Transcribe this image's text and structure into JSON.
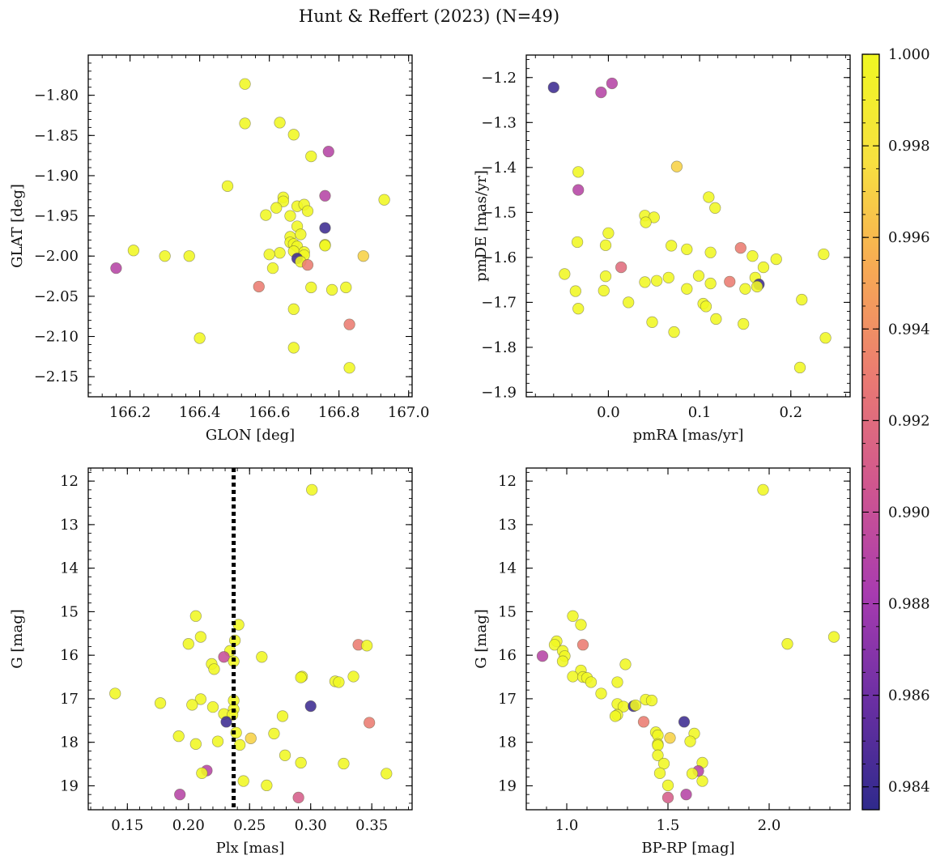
{
  "figure": {
    "title": "Hunt & Reffert (2023) (N=49)"
  },
  "colormap": {
    "name": "plasma",
    "stops": [
      "#2f2a8c",
      "#6a2fa3",
      "#a83bb0",
      "#d0568f",
      "#ea7a72",
      "#f7a954",
      "#f7e040",
      "#f0f722"
    ],
    "range": [
      0.9835,
      1.0
    ],
    "ticks": [
      0.984,
      0.986,
      0.988,
      0.99,
      0.992,
      0.994,
      0.996,
      0.998,
      1.0
    ],
    "tick_labels": [
      "0.984",
      "0.986",
      "0.988",
      "0.990",
      "0.992",
      "0.994",
      "0.996",
      "0.998",
      "1.000"
    ]
  },
  "chart_data": [
    {
      "type": "scatter",
      "xlabel": "GLON [deg]",
      "ylabel": "GLAT [deg]",
      "xlim": [
        166.08,
        167.01
      ],
      "ylim": [
        -2.175,
        -1.75
      ],
      "invert_y": false,
      "xticks": [
        166.2,
        166.4,
        166.6,
        166.8,
        167.0
      ],
      "xtick_labels": [
        "166.2",
        "166.4",
        "166.6",
        "166.8",
        "167.0"
      ],
      "yticks": [
        -1.8,
        -1.85,
        -1.9,
        -1.95,
        -2.0,
        -2.05,
        -2.1,
        -2.15
      ],
      "ytick_labels": [
        "−1.80",
        "−1.85",
        "−1.90",
        "−1.95",
        "−2.00",
        "−2.05",
        "−2.10",
        "−2.15"
      ],
      "points": [
        {
          "x": 166.53,
          "y": -1.786,
          "c": 1.0
        },
        {
          "x": 166.53,
          "y": -1.835,
          "c": 1.0
        },
        {
          "x": 166.63,
          "y": -1.834,
          "c": 1.0
        },
        {
          "x": 166.67,
          "y": -1.849,
          "c": 1.0
        },
        {
          "x": 166.72,
          "y": -1.876,
          "c": 1.0
        },
        {
          "x": 166.77,
          "y": -1.87,
          "c": 0.989
        },
        {
          "x": 166.48,
          "y": -1.913,
          "c": 1.0
        },
        {
          "x": 166.76,
          "y": -1.925,
          "c": 0.989
        },
        {
          "x": 166.93,
          "y": -1.93,
          "c": 1.0
        },
        {
          "x": 166.64,
          "y": -1.927,
          "c": 1.0
        },
        {
          "x": 166.64,
          "y": -1.932,
          "c": 1.0
        },
        {
          "x": 166.62,
          "y": -1.94,
          "c": 1.0
        },
        {
          "x": 166.68,
          "y": -1.938,
          "c": 1.0
        },
        {
          "x": 166.7,
          "y": -1.936,
          "c": 1.0
        },
        {
          "x": 166.71,
          "y": -1.944,
          "c": 1.0
        },
        {
          "x": 166.59,
          "y": -1.949,
          "c": 1.0
        },
        {
          "x": 166.66,
          "y": -1.95,
          "c": 1.0
        },
        {
          "x": 166.68,
          "y": -1.963,
          "c": 1.0
        },
        {
          "x": 166.76,
          "y": -1.965,
          "c": 0.984
        },
        {
          "x": 166.66,
          "y": -1.976,
          "c": 1.0
        },
        {
          "x": 166.69,
          "y": -1.973,
          "c": 1.0
        },
        {
          "x": 166.66,
          "y": -1.983,
          "c": 1.0
        },
        {
          "x": 166.67,
          "y": -1.985,
          "c": 1.0
        },
        {
          "x": 166.68,
          "y": -1.988,
          "c": 1.0
        },
        {
          "x": 166.76,
          "y": -1.986,
          "c": 1.0
        },
        {
          "x": 166.76,
          "y": -1.987,
          "c": 1.0
        },
        {
          "x": 166.21,
          "y": -1.993,
          "c": 1.0
        },
        {
          "x": 166.63,
          "y": -1.996,
          "c": 1.0
        },
        {
          "x": 166.67,
          "y": -1.994,
          "c": 1.0
        },
        {
          "x": 166.7,
          "y": -1.995,
          "c": 1.0
        },
        {
          "x": 166.7,
          "y": -1.999,
          "c": 1.0
        },
        {
          "x": 166.3,
          "y": -2.0,
          "c": 1.0
        },
        {
          "x": 166.37,
          "y": -2.0,
          "c": 1.0
        },
        {
          "x": 166.87,
          "y": -2.0,
          "c": 0.997
        },
        {
          "x": 166.68,
          "y": -2.003,
          "c": 0.984
        },
        {
          "x": 166.69,
          "y": -2.007,
          "c": 1.0
        },
        {
          "x": 166.71,
          "y": -2.011,
          "c": 0.993
        },
        {
          "x": 166.16,
          "y": -2.015,
          "c": 0.989
        },
        {
          "x": 166.61,
          "y": -2.015,
          "c": 1.0
        },
        {
          "x": 166.57,
          "y": -2.038,
          "c": 0.993
        },
        {
          "x": 166.72,
          "y": -2.039,
          "c": 1.0
        },
        {
          "x": 166.78,
          "y": -2.042,
          "c": 1.0
        },
        {
          "x": 166.82,
          "y": -2.039,
          "c": 1.0
        },
        {
          "x": 166.67,
          "y": -2.066,
          "c": 1.0
        },
        {
          "x": 166.83,
          "y": -2.085,
          "c": 0.993
        },
        {
          "x": 166.4,
          "y": -2.102,
          "c": 1.0
        },
        {
          "x": 166.67,
          "y": -2.114,
          "c": 1.0
        },
        {
          "x": 166.83,
          "y": -2.139,
          "c": 1.0
        },
        {
          "x": 166.6,
          "y": -1.998,
          "c": 1.0
        }
      ]
    },
    {
      "type": "scatter",
      "xlabel": "pmRA [mas/yr]",
      "ylabel": "pmDE [mas/yr]",
      "xlim": [
        -0.09,
        0.265
      ],
      "ylim": [
        -1.91,
        -1.15
      ],
      "invert_y": false,
      "xticks": [
        0.0,
        0.1,
        0.2
      ],
      "xtick_labels": [
        "0.0",
        "0.1",
        "0.2"
      ],
      "yticks": [
        -1.2,
        -1.3,
        -1.4,
        -1.5,
        -1.6,
        -1.7,
        -1.8,
        -1.9
      ],
      "ytick_labels": [
        "−1.2",
        "−1.3",
        "−1.4",
        "−1.5",
        "−1.6",
        "−1.7",
        "−1.8",
        "−1.9"
      ],
      "points": [
        {
          "x": -0.06,
          "y": -1.222,
          "c": 0.984
        },
        {
          "x": -0.008,
          "y": -1.233,
          "c": 0.989
        },
        {
          "x": 0.004,
          "y": -1.213,
          "c": 0.989
        },
        {
          "x": 0.075,
          "y": -1.398,
          "c": 0.997
        },
        {
          "x": -0.033,
          "y": -1.41,
          "c": 1.0
        },
        {
          "x": -0.033,
          "y": -1.45,
          "c": 0.989
        },
        {
          "x": 0.11,
          "y": -1.466,
          "c": 1.0
        },
        {
          "x": 0.117,
          "y": -1.49,
          "c": 1.0
        },
        {
          "x": 0.04,
          "y": -1.507,
          "c": 1.0
        },
        {
          "x": 0.05,
          "y": -1.511,
          "c": 1.0
        },
        {
          "x": 0.041,
          "y": -1.522,
          "c": 1.0
        },
        {
          "x": 0.0,
          "y": -1.546,
          "c": 1.0
        },
        {
          "x": -0.034,
          "y": -1.566,
          "c": 1.0
        },
        {
          "x": -0.003,
          "y": -1.573,
          "c": 1.0
        },
        {
          "x": 0.069,
          "y": -1.574,
          "c": 1.0
        },
        {
          "x": 0.086,
          "y": -1.582,
          "c": 1.0
        },
        {
          "x": 0.145,
          "y": -1.579,
          "c": 0.993
        },
        {
          "x": 0.112,
          "y": -1.589,
          "c": 1.0
        },
        {
          "x": 0.236,
          "y": -1.593,
          "c": 1.0
        },
        {
          "x": 0.158,
          "y": -1.597,
          "c": 1.0
        },
        {
          "x": 0.184,
          "y": -1.604,
          "c": 1.0
        },
        {
          "x": 0.17,
          "y": -1.622,
          "c": 1.0
        },
        {
          "x": 0.014,
          "y": -1.622,
          "c": 0.992
        },
        {
          "x": -0.048,
          "y": -1.637,
          "c": 1.0
        },
        {
          "x": -0.003,
          "y": -1.642,
          "c": 1.0
        },
        {
          "x": 0.066,
          "y": -1.645,
          "c": 1.0
        },
        {
          "x": 0.099,
          "y": -1.641,
          "c": 1.0
        },
        {
          "x": 0.161,
          "y": -1.645,
          "c": 1.0
        },
        {
          "x": 0.133,
          "y": -1.654,
          "c": 0.993
        },
        {
          "x": 0.04,
          "y": -1.655,
          "c": 1.0
        },
        {
          "x": 0.053,
          "y": -1.652,
          "c": 1.0
        },
        {
          "x": 0.112,
          "y": -1.658,
          "c": 1.0
        },
        {
          "x": 0.165,
          "y": -1.66,
          "c": 0.984
        },
        {
          "x": 0.163,
          "y": -1.665,
          "c": 1.0
        },
        {
          "x": 0.15,
          "y": -1.67,
          "c": 1.0
        },
        {
          "x": 0.086,
          "y": -1.67,
          "c": 1.0
        },
        {
          "x": -0.036,
          "y": -1.675,
          "c": 1.0
        },
        {
          "x": -0.005,
          "y": -1.674,
          "c": 1.0
        },
        {
          "x": 0.022,
          "y": -1.7,
          "c": 1.0
        },
        {
          "x": 0.212,
          "y": -1.694,
          "c": 1.0
        },
        {
          "x": 0.104,
          "y": -1.703,
          "c": 1.0
        },
        {
          "x": 0.107,
          "y": -1.709,
          "c": 1.0
        },
        {
          "x": -0.033,
          "y": -1.714,
          "c": 1.0
        },
        {
          "x": 0.118,
          "y": -1.737,
          "c": 1.0
        },
        {
          "x": 0.048,
          "y": -1.744,
          "c": 1.0
        },
        {
          "x": 0.148,
          "y": -1.748,
          "c": 1.0
        },
        {
          "x": 0.072,
          "y": -1.766,
          "c": 1.0
        },
        {
          "x": 0.238,
          "y": -1.779,
          "c": 1.0
        },
        {
          "x": 0.21,
          "y": -1.845,
          "c": 1.0
        }
      ]
    },
    {
      "type": "scatter",
      "xlabel": "Plx [mas]",
      "ylabel": "G [mag]",
      "xlim": [
        0.118,
        0.383
      ],
      "ylim": [
        11.7,
        19.55
      ],
      "invert_y": true,
      "vline": {
        "x": 0.237,
        "style": "dotted"
      },
      "xticks": [
        0.15,
        0.2,
        0.25,
        0.3,
        0.35
      ],
      "xtick_labels": [
        "0.15",
        "0.20",
        "0.25",
        "0.30",
        "0.35"
      ],
      "yticks": [
        12,
        13,
        14,
        15,
        16,
        17,
        18,
        19
      ],
      "ytick_labels": [
        "12",
        "13",
        "14",
        "15",
        "16",
        "17",
        "18",
        "19"
      ],
      "points": [
        {
          "x": 0.301,
          "y": 12.2,
          "c": 1.0
        },
        {
          "x": 0.206,
          "y": 15.1,
          "c": 1.0
        },
        {
          "x": 0.241,
          "y": 15.3,
          "c": 1.0
        },
        {
          "x": 0.21,
          "y": 15.58,
          "c": 1.0
        },
        {
          "x": 0.238,
          "y": 15.66,
          "c": 1.0
        },
        {
          "x": 0.2,
          "y": 15.74,
          "c": 1.0
        },
        {
          "x": 0.339,
          "y": 15.76,
          "c": 0.993
        },
        {
          "x": 0.346,
          "y": 15.78,
          "c": 1.0
        },
        {
          "x": 0.234,
          "y": 15.9,
          "c": 1.0
        },
        {
          "x": 0.229,
          "y": 16.04,
          "c": 0.99
        },
        {
          "x": 0.26,
          "y": 16.04,
          "c": 1.0
        },
        {
          "x": 0.237,
          "y": 16.14,
          "c": 1.0
        },
        {
          "x": 0.219,
          "y": 16.2,
          "c": 1.0
        },
        {
          "x": 0.221,
          "y": 16.32,
          "c": 1.0
        },
        {
          "x": 0.293,
          "y": 16.49,
          "c": 1.0
        },
        {
          "x": 0.292,
          "y": 16.51,
          "c": 1.0
        },
        {
          "x": 0.335,
          "y": 16.49,
          "c": 1.0
        },
        {
          "x": 0.32,
          "y": 16.6,
          "c": 1.0
        },
        {
          "x": 0.323,
          "y": 16.62,
          "c": 1.0
        },
        {
          "x": 0.14,
          "y": 16.88,
          "c": 1.0
        },
        {
          "x": 0.21,
          "y": 17.01,
          "c": 1.0
        },
        {
          "x": 0.237,
          "y": 17.04,
          "c": 1.0
        },
        {
          "x": 0.177,
          "y": 17.1,
          "c": 1.0
        },
        {
          "x": 0.203,
          "y": 17.14,
          "c": 1.0
        },
        {
          "x": 0.3,
          "y": 17.17,
          "c": 0.984
        },
        {
          "x": 0.22,
          "y": 17.19,
          "c": 1.0
        },
        {
          "x": 0.237,
          "y": 17.24,
          "c": 1.0
        },
        {
          "x": 0.229,
          "y": 17.35,
          "c": 1.0
        },
        {
          "x": 0.236,
          "y": 17.37,
          "c": 1.0
        },
        {
          "x": 0.277,
          "y": 17.4,
          "c": 1.0
        },
        {
          "x": 0.231,
          "y": 17.53,
          "c": 0.984
        },
        {
          "x": 0.348,
          "y": 17.55,
          "c": 0.993
        },
        {
          "x": 0.239,
          "y": 17.78,
          "c": 1.0
        },
        {
          "x": 0.27,
          "y": 17.8,
          "c": 1.0
        },
        {
          "x": 0.192,
          "y": 17.86,
          "c": 1.0
        },
        {
          "x": 0.251,
          "y": 17.91,
          "c": 0.997
        },
        {
          "x": 0.224,
          "y": 17.98,
          "c": 1.0
        },
        {
          "x": 0.206,
          "y": 18.04,
          "c": 1.0
        },
        {
          "x": 0.242,
          "y": 18.06,
          "c": 1.0
        },
        {
          "x": 0.279,
          "y": 18.3,
          "c": 1.0
        },
        {
          "x": 0.292,
          "y": 18.47,
          "c": 1.0
        },
        {
          "x": 0.327,
          "y": 18.49,
          "c": 1.0
        },
        {
          "x": 0.215,
          "y": 18.65,
          "c": 0.989
        },
        {
          "x": 0.211,
          "y": 18.71,
          "c": 1.0
        },
        {
          "x": 0.362,
          "y": 18.72,
          "c": 1.0
        },
        {
          "x": 0.245,
          "y": 18.89,
          "c": 1.0
        },
        {
          "x": 0.264,
          "y": 18.99,
          "c": 1.0
        },
        {
          "x": 0.193,
          "y": 19.2,
          "c": 0.989
        },
        {
          "x": 0.29,
          "y": 19.27,
          "c": 0.991
        }
      ]
    },
    {
      "type": "scatter",
      "xlabel": "BP-RP [mag]",
      "ylabel": "G [mag]",
      "xlim": [
        0.8,
        2.4
      ],
      "ylim": [
        11.7,
        19.55
      ],
      "invert_y": true,
      "xticks": [
        1.0,
        1.5,
        2.0
      ],
      "xtick_labels": [
        "1.0",
        "1.5",
        "2.0"
      ],
      "yticks": [
        12,
        13,
        14,
        15,
        16,
        17,
        18,
        19
      ],
      "ytick_labels": [
        "12",
        "13",
        "14",
        "15",
        "16",
        "17",
        "18",
        "19"
      ],
      "points": [
        {
          "x": 1.97,
          "y": 12.2,
          "c": 1.0
        },
        {
          "x": 1.03,
          "y": 15.1,
          "c": 1.0
        },
        {
          "x": 1.07,
          "y": 15.3,
          "c": 1.0
        },
        {
          "x": 2.32,
          "y": 15.58,
          "c": 1.0
        },
        {
          "x": 0.95,
          "y": 15.68,
          "c": 1.0
        },
        {
          "x": 0.94,
          "y": 15.76,
          "c": 1.0
        },
        {
          "x": 1.08,
          "y": 15.76,
          "c": 0.993
        },
        {
          "x": 2.09,
          "y": 15.74,
          "c": 1.0
        },
        {
          "x": 0.98,
          "y": 15.9,
          "c": 1.0
        },
        {
          "x": 0.88,
          "y": 16.02,
          "c": 0.989
        },
        {
          "x": 0.99,
          "y": 16.02,
          "c": 1.0
        },
        {
          "x": 0.98,
          "y": 16.14,
          "c": 1.0
        },
        {
          "x": 1.29,
          "y": 16.21,
          "c": 1.0
        },
        {
          "x": 1.07,
          "y": 16.35,
          "c": 1.0
        },
        {
          "x": 1.03,
          "y": 16.49,
          "c": 1.0
        },
        {
          "x": 1.08,
          "y": 16.5,
          "c": 1.0
        },
        {
          "x": 1.1,
          "y": 16.52,
          "c": 1.0
        },
        {
          "x": 1.12,
          "y": 16.62,
          "c": 1.0
        },
        {
          "x": 1.25,
          "y": 16.62,
          "c": 1.0
        },
        {
          "x": 1.17,
          "y": 16.88,
          "c": 1.0
        },
        {
          "x": 1.39,
          "y": 17.02,
          "c": 1.0
        },
        {
          "x": 1.42,
          "y": 17.04,
          "c": 1.0
        },
        {
          "x": 1.25,
          "y": 17.12,
          "c": 1.0
        },
        {
          "x": 1.28,
          "y": 17.18,
          "c": 1.0
        },
        {
          "x": 1.33,
          "y": 17.17,
          "c": 0.984
        },
        {
          "x": 1.34,
          "y": 17.15,
          "c": 1.0
        },
        {
          "x": 1.25,
          "y": 17.37,
          "c": 1.0
        },
        {
          "x": 1.24,
          "y": 17.4,
          "c": 1.0
        },
        {
          "x": 1.38,
          "y": 17.53,
          "c": 0.993
        },
        {
          "x": 1.58,
          "y": 17.53,
          "c": 0.984
        },
        {
          "x": 1.44,
          "y": 17.77,
          "c": 1.0
        },
        {
          "x": 1.63,
          "y": 17.8,
          "c": 1.0
        },
        {
          "x": 1.45,
          "y": 17.84,
          "c": 1.0
        },
        {
          "x": 1.51,
          "y": 17.9,
          "c": 0.997
        },
        {
          "x": 1.61,
          "y": 17.98,
          "c": 1.0
        },
        {
          "x": 1.45,
          "y": 18.04,
          "c": 1.0
        },
        {
          "x": 1.45,
          "y": 18.07,
          "c": 1.0
        },
        {
          "x": 1.45,
          "y": 18.3,
          "c": 1.0
        },
        {
          "x": 1.48,
          "y": 18.49,
          "c": 1.0
        },
        {
          "x": 1.67,
          "y": 18.47,
          "c": 1.0
        },
        {
          "x": 1.65,
          "y": 18.66,
          "c": 0.989
        },
        {
          "x": 1.46,
          "y": 18.71,
          "c": 1.0
        },
        {
          "x": 1.62,
          "y": 18.72,
          "c": 1.0
        },
        {
          "x": 1.67,
          "y": 18.89,
          "c": 1.0
        },
        {
          "x": 1.5,
          "y": 18.99,
          "c": 1.0
        },
        {
          "x": 1.59,
          "y": 19.2,
          "c": 0.989
        },
        {
          "x": 1.5,
          "y": 19.27,
          "c": 0.991
        }
      ]
    }
  ]
}
